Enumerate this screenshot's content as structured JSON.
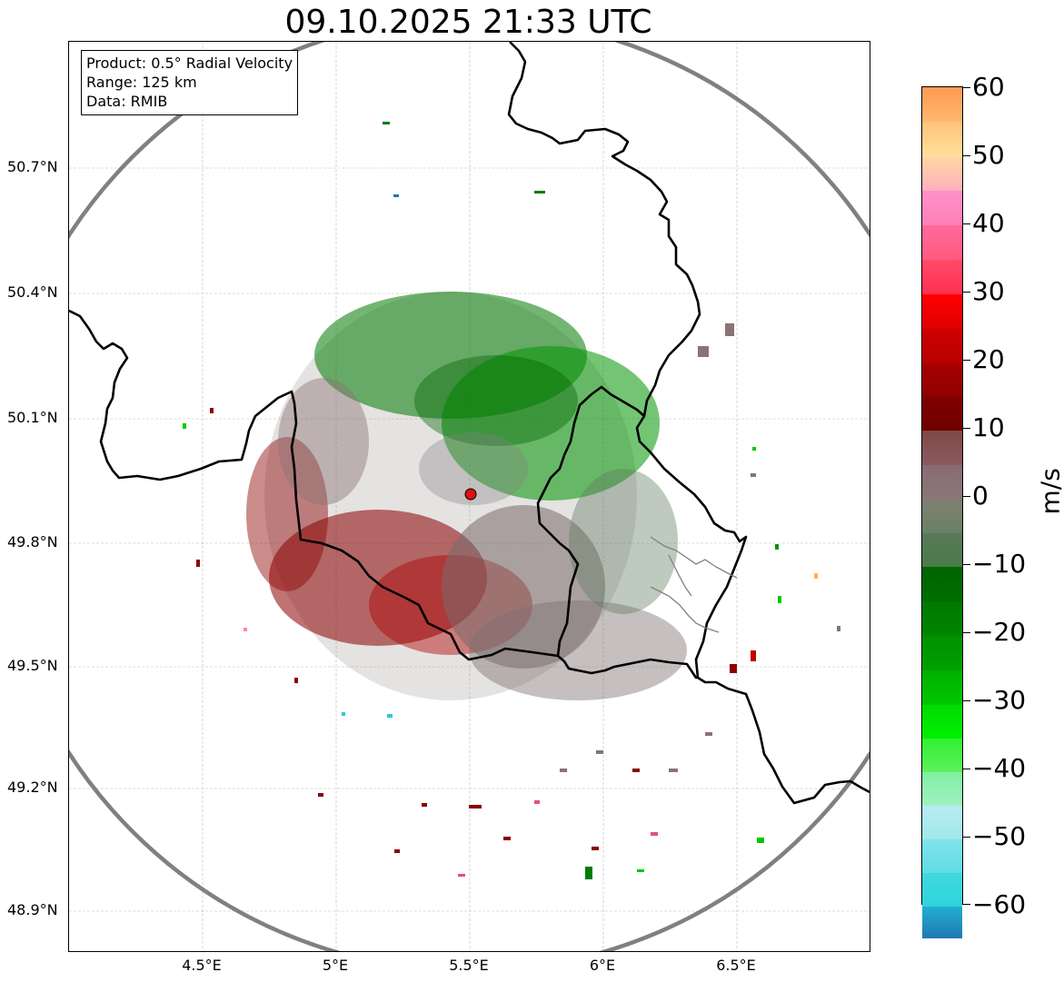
{
  "title": "09.10.2025 21:33 UTC",
  "info_box": {
    "product": "Product: 0.5° Radial Velocity",
    "range": "Range: 125 km",
    "data": "Data: RMIB"
  },
  "lat_labels": [
    "50.7°N",
    "50.4°N",
    "50.1°N",
    "49.8°N",
    "49.5°N",
    "49.2°N",
    "48.9°N"
  ],
  "lon_labels": [
    "4.5°E",
    "5°E",
    "5.5°E",
    "6°E",
    "6.5°E"
  ],
  "colorbar": {
    "unit": "m/s",
    "ticks": [
      "60",
      "50",
      "40",
      "30",
      "20",
      "10",
      "0",
      "−10",
      "−20",
      "−30",
      "−40",
      "−50",
      "−60"
    ]
  },
  "colors": {
    "range_ring": "#808080",
    "border": "#000000",
    "radar_site": "#e01010",
    "outbound_strong": "#8b0000",
    "inbound_strong": "#009600",
    "near_zero": "#8a7a7a"
  }
}
